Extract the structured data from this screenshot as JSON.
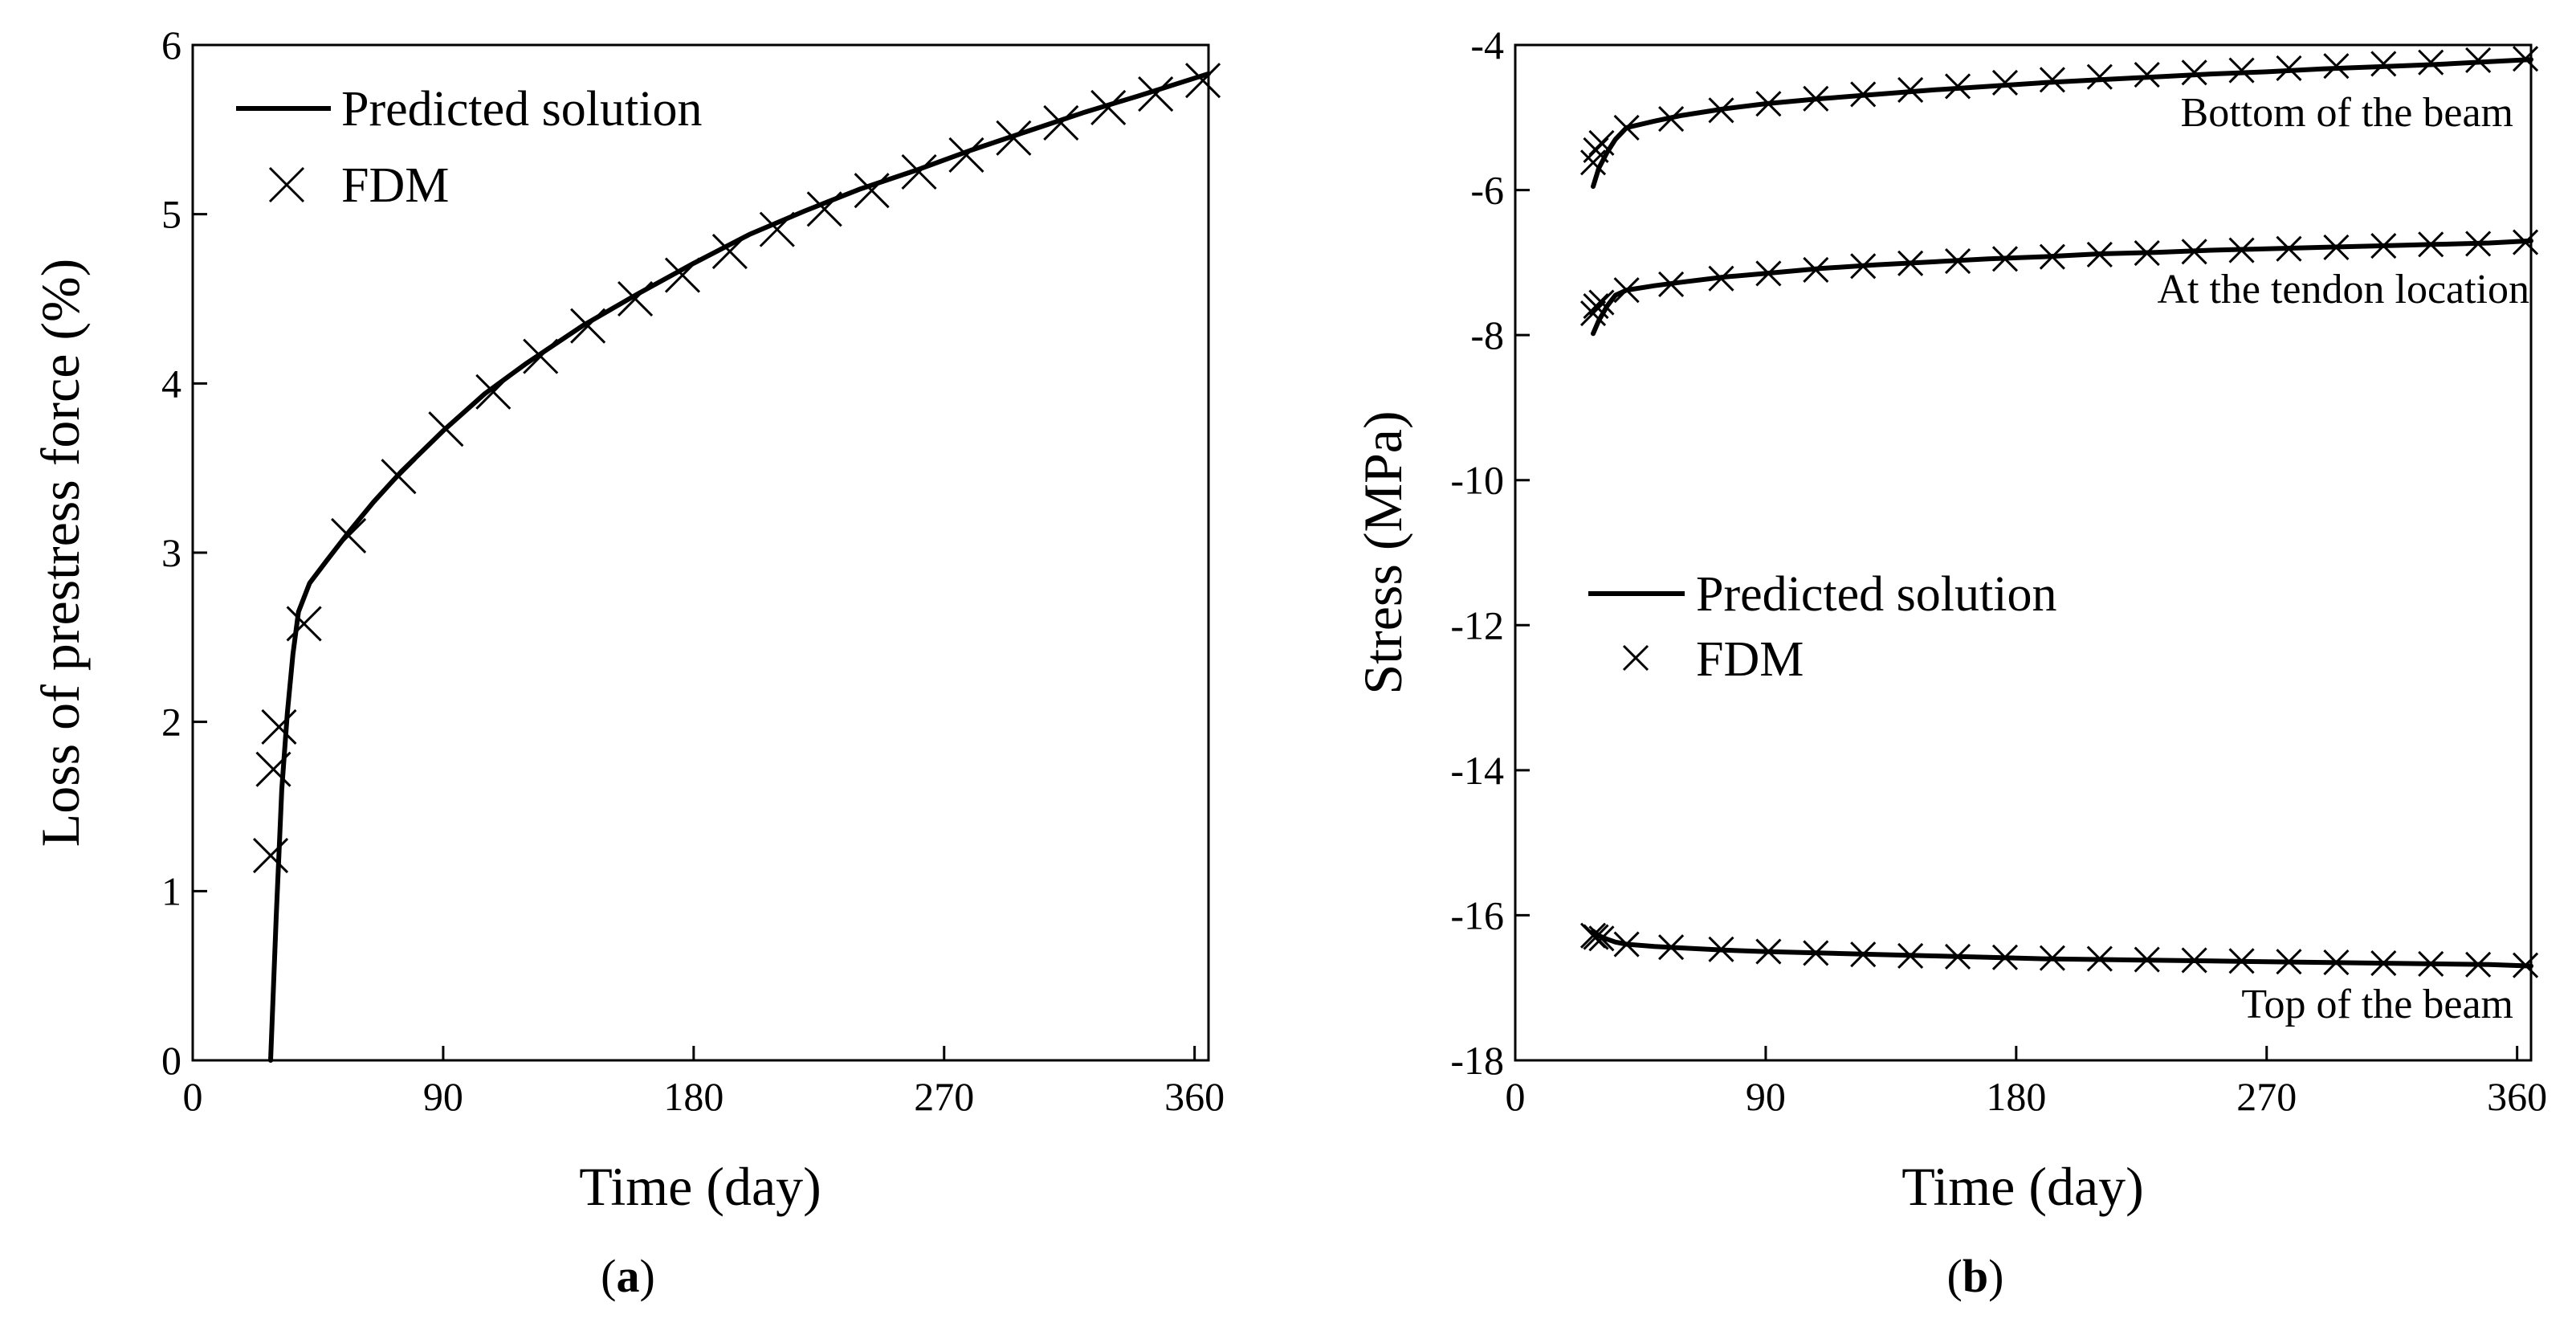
{
  "chart_data": [
    {
      "type": "line",
      "panel_label": "a",
      "xlabel": "Time (day)",
      "ylabel": "Loss of prestress force (%)",
      "xlim": [
        0,
        365
      ],
      "ylim": [
        0,
        6
      ],
      "xticks": [
        0,
        90,
        180,
        270,
        360
      ],
      "yticks": [
        0,
        1,
        2,
        3,
        4,
        5,
        6
      ],
      "legend": {
        "position": "top-left",
        "entries": [
          "Predicted solution",
          "FDM"
        ]
      },
      "series": [
        {
          "name": "Predicted solution",
          "style": "line",
          "x": [
            28,
            30,
            32,
            34,
            36,
            38,
            42,
            48,
            56,
            65,
            75,
            90,
            105,
            120,
            140,
            160,
            180,
            200,
            220,
            240,
            260,
            280,
            300,
            320,
            340,
            365
          ],
          "y": [
            0,
            0.85,
            1.6,
            2.05,
            2.4,
            2.65,
            2.82,
            2.95,
            3.12,
            3.3,
            3.48,
            3.72,
            3.94,
            4.12,
            4.34,
            4.53,
            4.71,
            4.88,
            5.02,
            5.15,
            5.26,
            5.38,
            5.49,
            5.6,
            5.7,
            5.83
          ]
        },
        {
          "name": "FDM",
          "style": "marker-x",
          "x": [
            28,
            29,
            31,
            40,
            56,
            74,
            91,
            108,
            125,
            142,
            159,
            176,
            193,
            210,
            227,
            244,
            261,
            278,
            295,
            312,
            329,
            346,
            363
          ],
          "y": [
            1.21,
            1.72,
            1.97,
            2.58,
            3.1,
            3.45,
            3.73,
            3.95,
            4.16,
            4.34,
            4.5,
            4.64,
            4.78,
            4.91,
            5.03,
            5.14,
            5.25,
            5.35,
            5.45,
            5.54,
            5.63,
            5.71,
            5.79
          ]
        }
      ]
    },
    {
      "type": "line",
      "panel_label": "b",
      "xlabel": "Time (day)",
      "ylabel": "Stress (MPa)",
      "xlim": [
        0,
        365
      ],
      "ylim": [
        -18,
        -4
      ],
      "xticks": [
        0,
        90,
        180,
        270,
        360
      ],
      "yticks": [
        -4,
        -6,
        -8,
        -10,
        -12,
        -14,
        -16,
        -18
      ],
      "legend": {
        "position": "center-left",
        "entries": [
          "Predicted solution",
          "FDM"
        ]
      },
      "annotations": [
        "Bottom of the beam",
        "At the tendon location",
        "Top of the beam"
      ],
      "series": [
        {
          "name": "Bottom of the beam (Predicted solution)",
          "style": "line",
          "x": [
            28,
            30,
            33,
            36,
            40,
            50,
            60,
            75,
            90,
            110,
            130,
            150,
            170,
            190,
            210,
            230,
            250,
            270,
            290,
            310,
            330,
            350,
            365
          ],
          "y": [
            -5.95,
            -5.7,
            -5.48,
            -5.3,
            -5.14,
            -5.05,
            -4.97,
            -4.88,
            -4.81,
            -4.74,
            -4.68,
            -4.62,
            -4.57,
            -4.52,
            -4.48,
            -4.44,
            -4.4,
            -4.37,
            -4.33,
            -4.3,
            -4.27,
            -4.23,
            -4.2
          ]
        },
        {
          "name": "Bottom of the beam (FDM)",
          "style": "marker-x",
          "x": [
            28,
            29,
            31,
            40,
            56,
            74,
            91,
            108,
            125,
            142,
            159,
            176,
            193,
            210,
            227,
            244,
            261,
            278,
            295,
            312,
            329,
            346,
            363
          ],
          "y": [
            -5.62,
            -5.45,
            -5.35,
            -5.14,
            -5.02,
            -4.9,
            -4.81,
            -4.74,
            -4.68,
            -4.62,
            -4.57,
            -4.52,
            -4.48,
            -4.44,
            -4.41,
            -4.38,
            -4.35,
            -4.32,
            -4.29,
            -4.26,
            -4.24,
            -4.21,
            -4.19
          ]
        },
        {
          "name": "At the tendon location (Predicted solution)",
          "style": "line",
          "x": [
            28,
            30,
            33,
            36,
            40,
            50,
            60,
            75,
            90,
            110,
            130,
            150,
            170,
            190,
            210,
            230,
            250,
            270,
            290,
            310,
            330,
            350,
            365
          ],
          "y": [
            -7.98,
            -7.8,
            -7.6,
            -7.45,
            -7.38,
            -7.32,
            -7.27,
            -7.2,
            -7.15,
            -7.08,
            -7.03,
            -6.99,
            -6.95,
            -6.92,
            -6.88,
            -6.86,
            -6.83,
            -6.81,
            -6.79,
            -6.77,
            -6.75,
            -6.73,
            -6.7
          ]
        },
        {
          "name": "At the tendon location (FDM)",
          "style": "marker-x",
          "x": [
            28,
            29,
            31,
            40,
            56,
            74,
            91,
            108,
            125,
            142,
            159,
            176,
            193,
            210,
            227,
            244,
            261,
            278,
            295,
            312,
            329,
            346,
            363
          ],
          "y": [
            -7.7,
            -7.6,
            -7.55,
            -7.38,
            -7.3,
            -7.22,
            -7.15,
            -7.1,
            -7.05,
            -7.01,
            -6.98,
            -6.95,
            -6.92,
            -6.89,
            -6.87,
            -6.85,
            -6.83,
            -6.81,
            -6.79,
            -6.77,
            -6.75,
            -6.74,
            -6.72
          ]
        },
        {
          "name": "Top of the beam (Predicted solution)",
          "style": "line",
          "x": [
            28,
            30,
            33,
            36,
            40,
            50,
            60,
            75,
            90,
            110,
            130,
            150,
            170,
            190,
            210,
            230,
            250,
            270,
            290,
            310,
            330,
            350,
            365
          ],
          "y": [
            -16.22,
            -16.28,
            -16.33,
            -16.37,
            -16.4,
            -16.43,
            -16.45,
            -16.48,
            -16.5,
            -16.52,
            -16.54,
            -16.56,
            -16.58,
            -16.6,
            -16.61,
            -16.62,
            -16.63,
            -16.64,
            -16.65,
            -16.66,
            -16.67,
            -16.68,
            -16.7
          ]
        },
        {
          "name": "Top of the beam (FDM)",
          "style": "marker-x",
          "x": [
            28,
            29,
            31,
            40,
            56,
            74,
            91,
            108,
            125,
            142,
            159,
            176,
            193,
            210,
            227,
            244,
            261,
            278,
            295,
            312,
            329,
            346,
            363
          ],
          "y": [
            -16.28,
            -16.3,
            -16.32,
            -16.4,
            -16.44,
            -16.47,
            -16.5,
            -16.52,
            -16.54,
            -16.56,
            -16.57,
            -16.58,
            -16.59,
            -16.6,
            -16.61,
            -16.62,
            -16.63,
            -16.64,
            -16.65,
            -16.66,
            -16.67,
            -16.68,
            -16.69
          ]
        }
      ]
    }
  ]
}
